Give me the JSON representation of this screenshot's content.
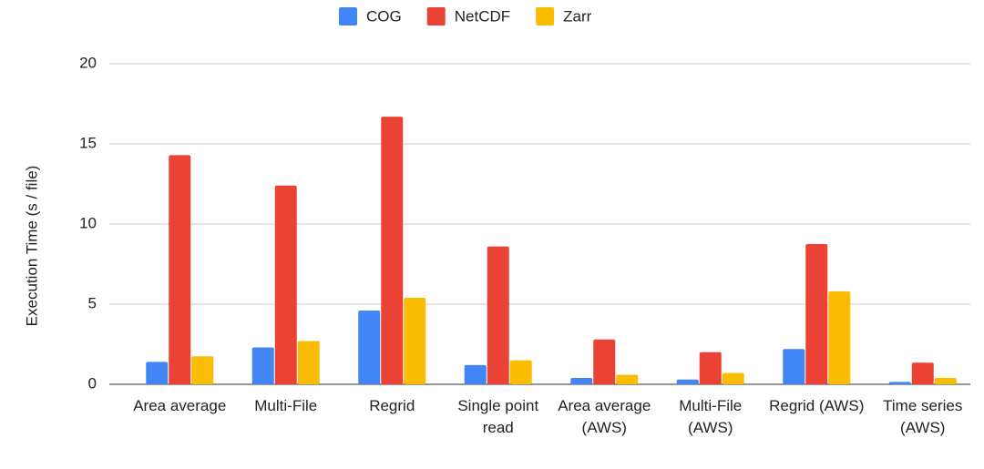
{
  "chart_data": {
    "type": "bar",
    "y_label": "Execution Time (s / file)",
    "categories": [
      "Area average",
      "Multi-File",
      "Regrid",
      "Single point read",
      "Area average (AWS)",
      "Multi-File (AWS)",
      "Regrid (AWS)",
      "Time series (AWS)"
    ],
    "series": [
      {
        "name": "COG",
        "color": "#4285f4",
        "values": [
          1.4,
          2.3,
          4.6,
          1.2,
          0.4,
          0.3,
          2.2,
          0.15
        ]
      },
      {
        "name": "NetCDF",
        "color": "#ea4335",
        "values": [
          14.3,
          12.4,
          16.7,
          8.6,
          2.8,
          2.0,
          8.75,
          1.35
        ]
      },
      {
        "name": "Zarr",
        "color": "#fbbc04",
        "values": [
          1.75,
          2.7,
          5.4,
          1.5,
          0.6,
          0.7,
          5.8,
          0.4
        ]
      }
    ],
    "ylim": [
      0,
      20
    ],
    "yticks": [
      0,
      5,
      10,
      15,
      20
    ],
    "grid": true,
    "legend": "top"
  }
}
